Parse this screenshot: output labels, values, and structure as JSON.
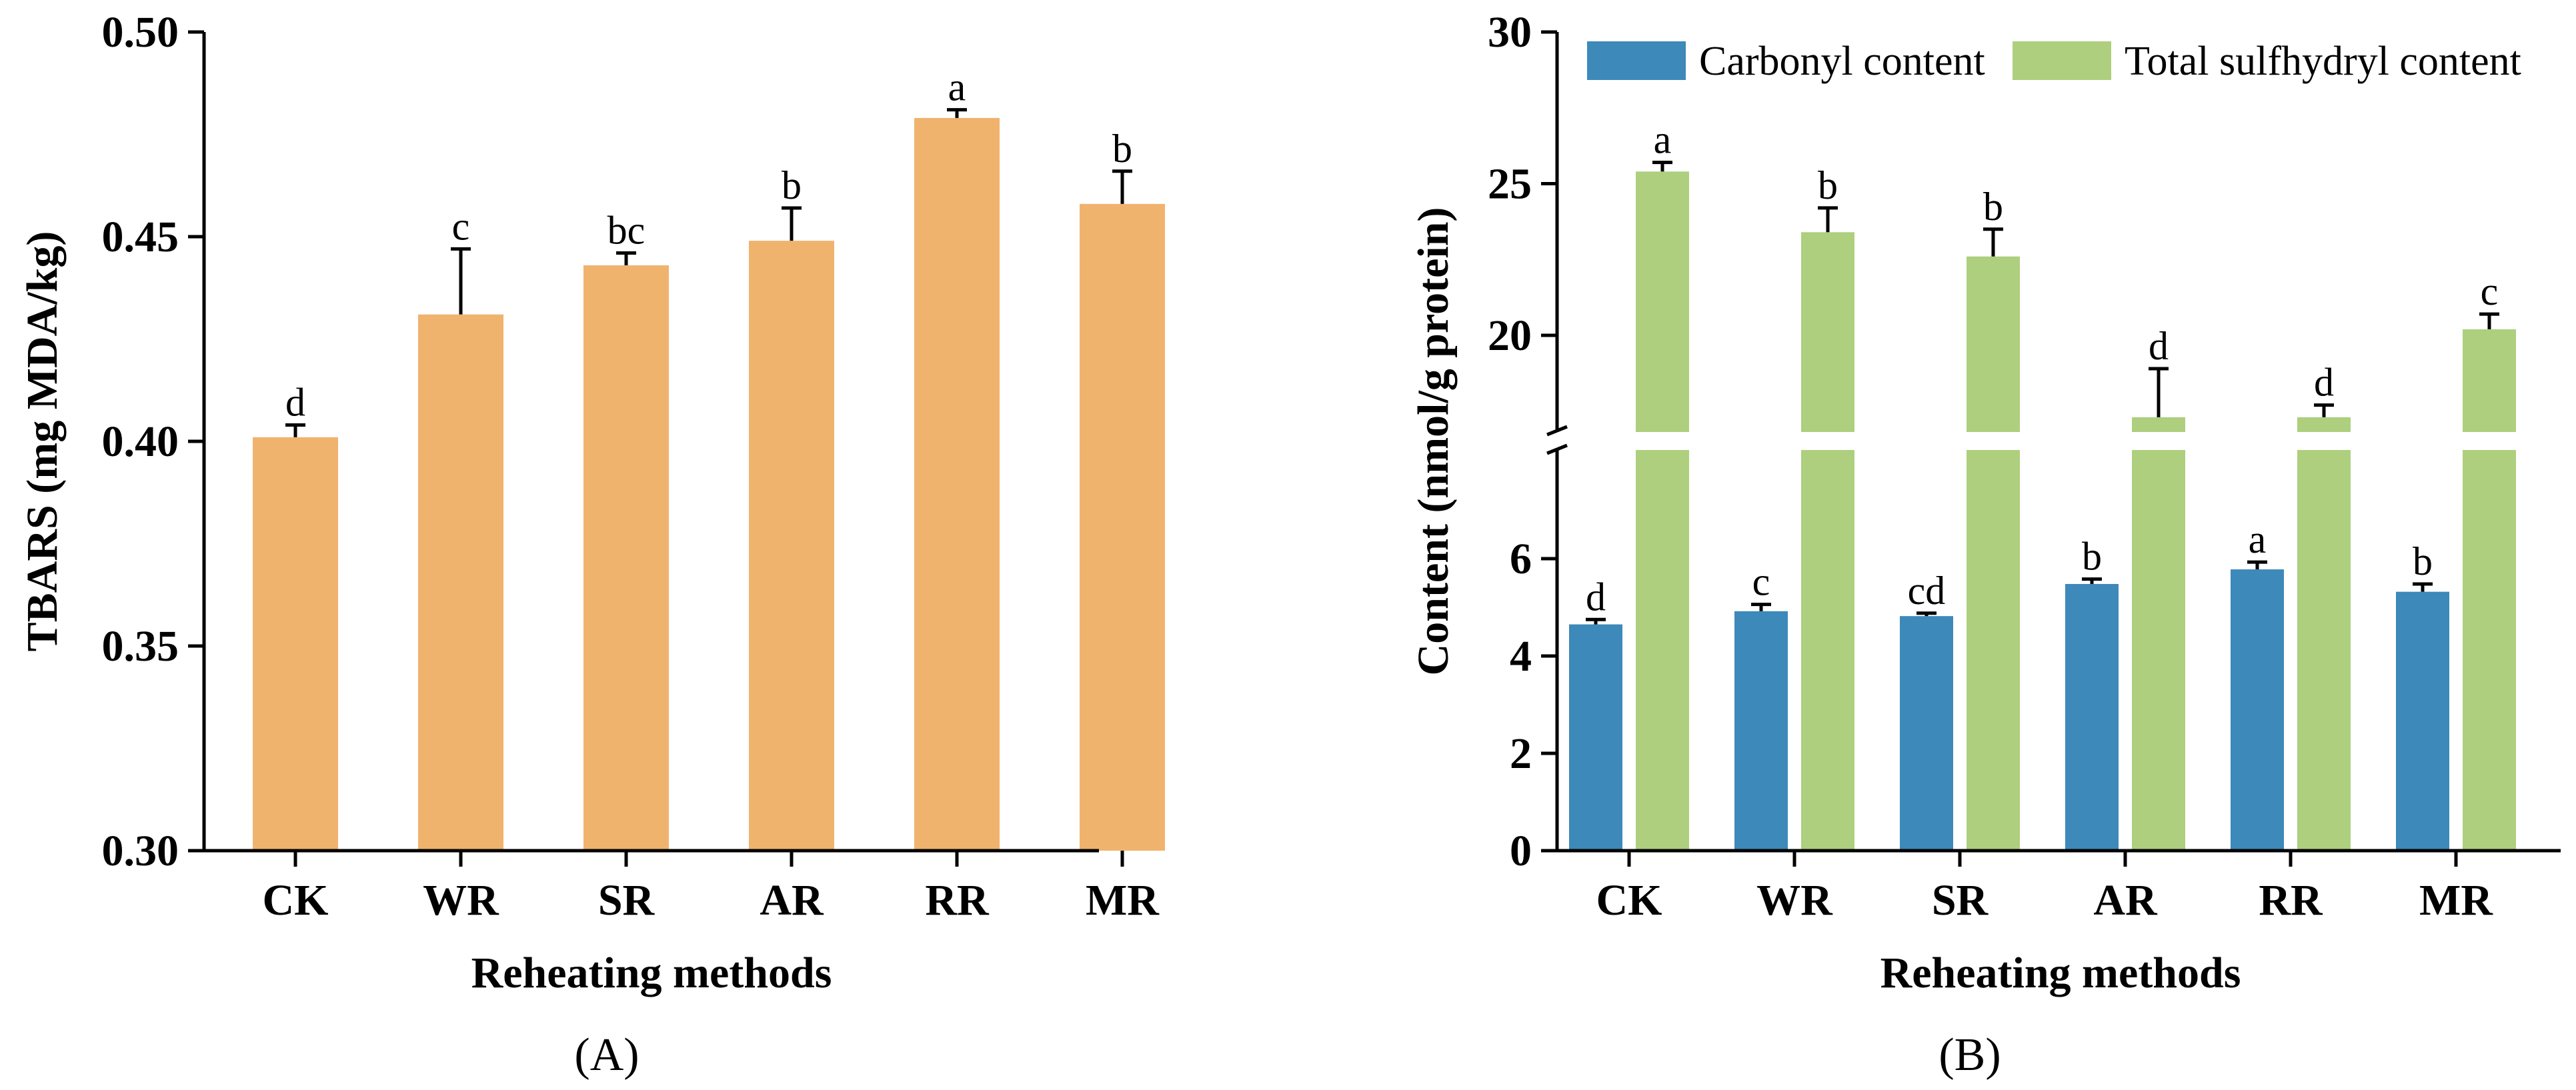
{
  "chart_data": [
    {
      "type": "bar",
      "panel_label": "(A)",
      "categories": [
        "CK",
        "WR",
        "SR",
        "AR",
        "RR",
        "MR"
      ],
      "values": [
        0.401,
        0.431,
        0.443,
        0.449,
        0.479,
        0.458
      ],
      "errors": [
        0.003,
        0.016,
        0.003,
        0.008,
        0.002,
        0.008
      ],
      "letters": [
        "d",
        "c",
        "bc",
        "b",
        "a",
        "b"
      ],
      "ylim": [
        0.3,
        0.5
      ],
      "yticks": [
        "0.30",
        "0.35",
        "0.40",
        "0.45",
        "0.50"
      ],
      "xlabel": "Reheating methods",
      "ylabel": "TBARS (mg MDA/kg)",
      "color": "#F0B36E"
    },
    {
      "type": "bar",
      "panel_label": "(B)",
      "categories": [
        "CK",
        "WR",
        "SR",
        "AR",
        "RR",
        "MR"
      ],
      "series": [
        {
          "name": "Carbonyl content",
          "color": "#3D89B9",
          "values": [
            4.65,
            4.92,
            4.82,
            5.48,
            5.78,
            5.32
          ],
          "errors": [
            0.1,
            0.14,
            0.06,
            0.1,
            0.15,
            0.16
          ],
          "letters": [
            "d",
            "c",
            "cd",
            "b",
            "a",
            "b"
          ]
        },
        {
          "name": "Total sulfhydryl content",
          "color": "#AECF7E",
          "values": [
            25.4,
            23.4,
            22.6,
            17.3,
            17.3,
            20.2
          ],
          "errors": [
            0.3,
            0.8,
            0.9,
            1.6,
            0.4,
            0.5
          ],
          "letters": [
            "a",
            "b",
            "b",
            "d",
            "d",
            "c"
          ]
        }
      ],
      "y_break": [
        7,
        15
      ],
      "yticks": [
        "0",
        "2",
        "4",
        "6",
        "20",
        "25",
        "30"
      ],
      "xlabel": "Reheating methods",
      "ylabel": "Content (nmol/g protein)"
    }
  ]
}
